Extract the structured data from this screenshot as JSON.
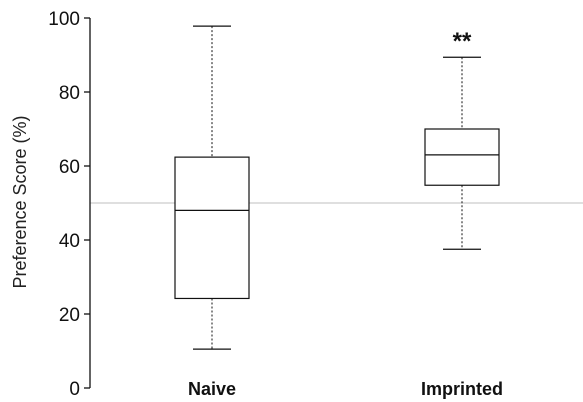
{
  "chart_data": {
    "type": "boxplot",
    "ylabel": "Preference Score (%)",
    "ylim": [
      0,
      100
    ],
    "yticks": [
      0,
      20,
      40,
      60,
      80,
      100
    ],
    "reference_line": 50,
    "reference_line_color": "#cccccc",
    "categories": [
      "Naive",
      "Imprinted"
    ],
    "boxes": [
      {
        "category": "Naive",
        "min": 10.5,
        "q1": 24.2,
        "median": 48.0,
        "q3": 62.4,
        "max": 97.8,
        "annotation": ""
      },
      {
        "category": "Imprinted",
        "min": 37.5,
        "q1": 54.8,
        "median": 63.0,
        "q3": 70.0,
        "max": 89.4,
        "annotation": "**"
      }
    ],
    "grid": false
  }
}
